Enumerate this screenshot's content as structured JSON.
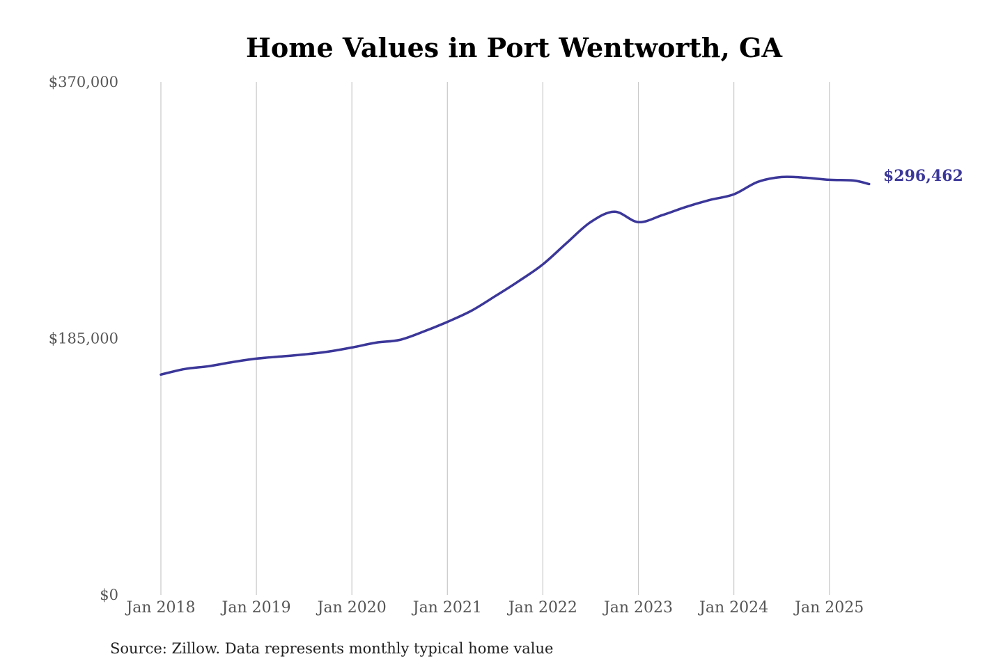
{
  "chart_data": {
    "type": "line",
    "title": "Home Values in Port Wentworth, GA",
    "xlabel": "",
    "ylabel": "",
    "source": "Source: Zillow. Data represents monthly typical home value",
    "ylim": [
      0,
      370000
    ],
    "y_ticks": [
      0,
      185000,
      370000
    ],
    "y_tick_labels": [
      "$0",
      "$185,000",
      "$370,000"
    ],
    "x_ticks": [
      "2018-01",
      "2019-01",
      "2020-01",
      "2021-01",
      "2022-01",
      "2023-01",
      "2024-01",
      "2025-01"
    ],
    "x_tick_labels": [
      "Jan 2018",
      "Jan 2019",
      "Jan 2020",
      "Jan 2021",
      "Jan 2022",
      "Jan 2023",
      "Jan 2024",
      "Jan 2025"
    ],
    "grid": "vertical",
    "line_color": "#3b3799",
    "end_label": "$296,462",
    "series": [
      {
        "x": [
          "2018-01",
          "2018-04",
          "2018-07",
          "2018-10",
          "2019-01",
          "2019-04",
          "2019-07",
          "2019-10",
          "2020-01",
          "2020-04",
          "2020-07",
          "2020-10",
          "2021-01",
          "2021-04",
          "2021-07",
          "2021-10",
          "2022-01",
          "2022-04",
          "2022-07",
          "2022-10",
          "2023-01",
          "2023-04",
          "2023-07",
          "2023-10",
          "2024-01",
          "2024-04",
          "2024-07",
          "2024-10",
          "2025-01",
          "2025-04",
          "2025-06"
        ],
        "values": [
          159000,
          163000,
          165000,
          168000,
          170500,
          172000,
          173500,
          175500,
          178500,
          182000,
          184000,
          190000,
          197000,
          205000,
          215500,
          226500,
          238500,
          254000,
          269000,
          276500,
          269000,
          274000,
          280000,
          285000,
          289000,
          298000,
          301500,
          301000,
          299500,
          299000,
          296462
        ]
      }
    ]
  }
}
